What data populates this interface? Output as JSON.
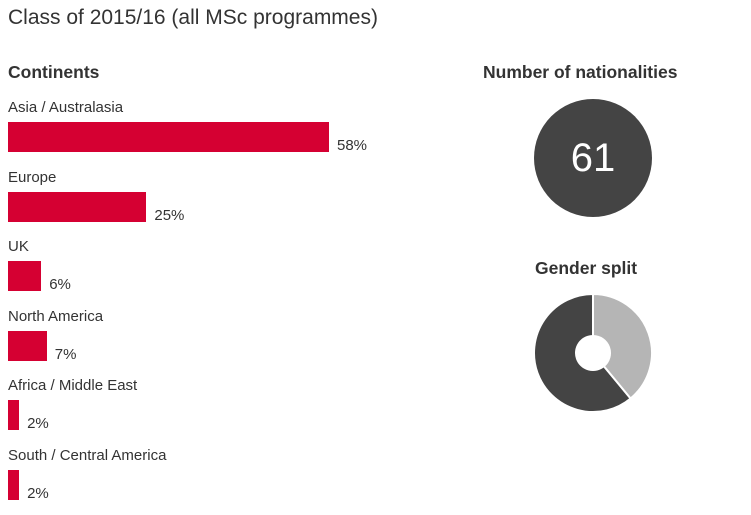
{
  "title": "Class of 2015/16 (all MSc programmes)",
  "continents": {
    "heading": "Continents"
  },
  "nationalities": {
    "heading": "Number of nationalities",
    "value": "61",
    "circle_color": "#444444"
  },
  "gender": {
    "heading": "Gender split"
  },
  "chart_data": [
    {
      "type": "bar",
      "orientation": "horizontal",
      "title": "Continents",
      "categories": [
        "Asia / Australasia",
        "Europe",
        "UK",
        "North America",
        "Africa / Middle East",
        "South / Central America"
      ],
      "values": [
        58,
        25,
        6,
        7,
        2,
        2
      ],
      "value_labels": [
        "58%",
        "25%",
        "6%",
        "7%",
        "2%",
        "2%"
      ],
      "unit": "%",
      "bar_color": "#d50032"
    },
    {
      "type": "pie",
      "style": "donut",
      "title": "Gender split",
      "values": [
        61,
        39
      ],
      "colors": [
        "#444444",
        "#b5b5b5"
      ]
    }
  ]
}
